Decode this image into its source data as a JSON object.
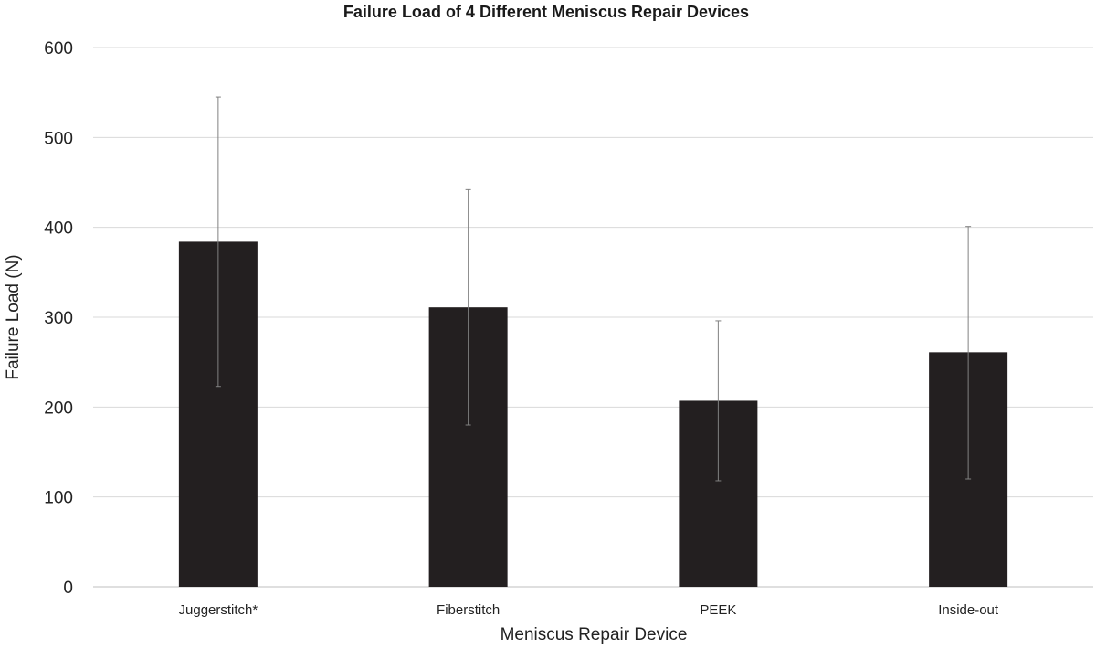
{
  "chart_data": {
    "type": "bar",
    "title": "Failure Load of 4 Different Meniscus Repair Devices",
    "xlabel": "Meniscus Repair Device",
    "ylabel": "Failure Load (N)",
    "categories": [
      "Juggerstitch*",
      "Fiberstitch",
      "PEEK",
      "Inside-out"
    ],
    "values": [
      384,
      311,
      207,
      261
    ],
    "error_high": [
      545,
      442,
      296,
      401
    ],
    "error_low": [
      223,
      180,
      118,
      120
    ],
    "ylim": [
      0,
      600
    ],
    "yticks": [
      "0",
      "100",
      "200",
      "300",
      "400",
      "500",
      "600"
    ],
    "grid": true,
    "legend": "none",
    "colors": {
      "bar": "#231f20",
      "error_bar": "#808080",
      "grid": "#d9d9d9",
      "axis": "#bfbfbf"
    }
  }
}
